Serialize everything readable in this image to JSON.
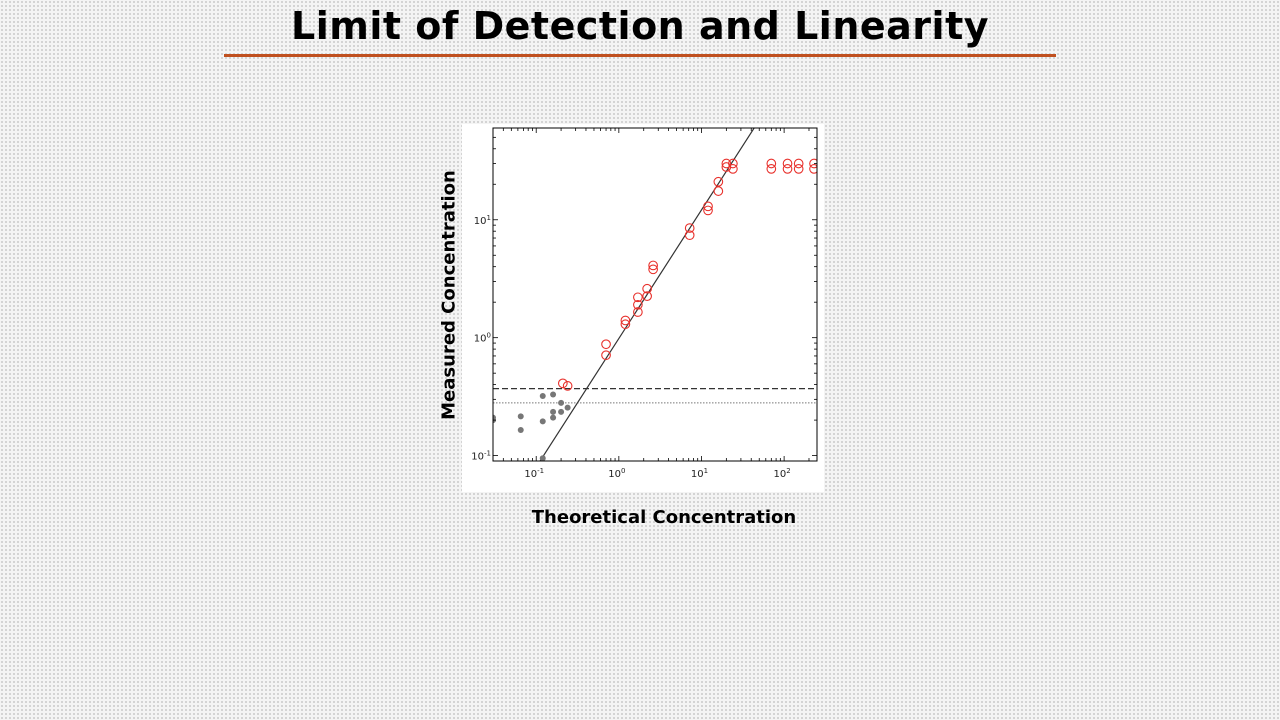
{
  "slide": {
    "title": "Limit of Detection and Linearity",
    "accent_color": "#c0501f"
  },
  "chart_data": {
    "type": "scatter",
    "title": "",
    "xlabel": "Theoretical Concentration",
    "ylabel": "Measured Concentration",
    "x_scale": "log",
    "y_scale": "log",
    "xlim": [
      0.03,
      250
    ],
    "ylim": [
      0.09,
      60
    ],
    "x_ticks": [
      {
        "base": "10",
        "exp": "-1",
        "value": 0.1
      },
      {
        "base": "10",
        "exp": "0",
        "value": 1
      },
      {
        "base": "10",
        "exp": "1",
        "value": 10
      },
      {
        "base": "10",
        "exp": "2",
        "value": 100
      }
    ],
    "y_ticks": [
      {
        "base": "10",
        "exp": "-1",
        "value": 0.1
      },
      {
        "base": "10",
        "exp": "0",
        "value": 1
      },
      {
        "base": "10",
        "exp": "1",
        "value": 10
      }
    ],
    "grid": false,
    "legend": "none",
    "series": [
      {
        "marker": "filled-circle",
        "color": "#777777",
        "points": [
          [
            0.03,
            0.21
          ],
          [
            0.03,
            0.2
          ],
          [
            0.065,
            0.215
          ],
          [
            0.065,
            0.165
          ],
          [
            0.12,
            0.32
          ],
          [
            0.12,
            0.195
          ],
          [
            0.12,
            0.095
          ],
          [
            0.16,
            0.33
          ],
          [
            0.16,
            0.235
          ],
          [
            0.16,
            0.21
          ],
          [
            0.2,
            0.28
          ],
          [
            0.2,
            0.235
          ],
          [
            0.24,
            0.255
          ]
        ]
      },
      {
        "marker": "open-circle",
        "color": "#e8302b",
        "points": [
          [
            0.21,
            0.41
          ],
          [
            0.24,
            0.39
          ],
          [
            0.7,
            0.88
          ],
          [
            0.7,
            0.71
          ],
          [
            1.2,
            1.4
          ],
          [
            1.2,
            1.3
          ],
          [
            1.7,
            2.2
          ],
          [
            1.7,
            1.9
          ],
          [
            1.7,
            1.65
          ],
          [
            2.2,
            2.6
          ],
          [
            2.2,
            2.25
          ],
          [
            2.6,
            4.1
          ],
          [
            2.6,
            3.8
          ],
          [
            7.2,
            8.5
          ],
          [
            7.2,
            7.4
          ],
          [
            12,
            13
          ],
          [
            12,
            12
          ],
          [
            16,
            21
          ],
          [
            16,
            17.5
          ],
          [
            20,
            30
          ],
          [
            20,
            28
          ],
          [
            24,
            30
          ],
          [
            24,
            27
          ],
          [
            70,
            30
          ],
          [
            70,
            27
          ],
          [
            110,
            30
          ],
          [
            110,
            27
          ],
          [
            150,
            30
          ],
          [
            150,
            27
          ],
          [
            230,
            30
          ],
          [
            230,
            27
          ]
        ]
      }
    ],
    "fit_line": {
      "style": "solid",
      "color": "#333333",
      "from": [
        0.1,
        0.08
      ],
      "to": [
        50,
        70
      ]
    },
    "reference_lines": [
      {
        "style": "dashed",
        "y": 0.37,
        "color": "#333333"
      },
      {
        "style": "dotted",
        "y": 0.28,
        "color": "#777777"
      }
    ]
  }
}
